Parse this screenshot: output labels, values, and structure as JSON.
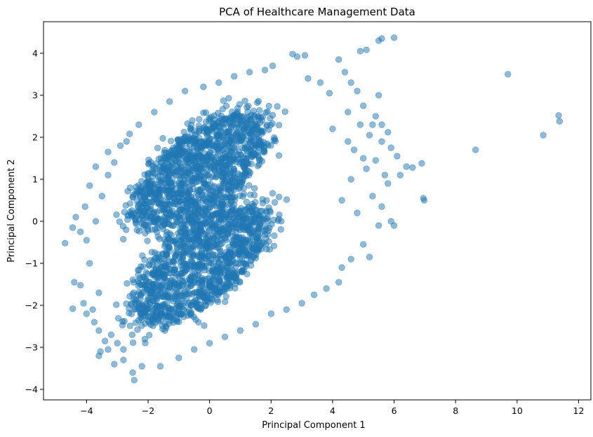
{
  "chart_data": {
    "type": "scatter",
    "title": "PCA of Healthcare Management Data",
    "xlabel": "Principal Component 1",
    "ylabel": "Principal Component 2",
    "xlim": [
      -5.4,
      12.4
    ],
    "ylim": [
      -4.25,
      4.75
    ],
    "xticks": [
      -4,
      -2,
      0,
      2,
      4,
      6,
      8,
      10,
      12
    ],
    "yticks": [
      -4,
      -3,
      -2,
      -1,
      0,
      1,
      2,
      3,
      4
    ],
    "grid": false,
    "marker_color": "#1f77b4",
    "marker_alpha": 0.5,
    "series": [
      {
        "points": [
          [
            -4.7,
            -0.52
          ],
          [
            -4.45,
            -0.15
          ],
          [
            -4.4,
            -1.45
          ],
          [
            -4.45,
            -2.08
          ],
          [
            -4.2,
            -1.52
          ],
          [
            -4.1,
            -1.95
          ],
          [
            -4.0,
            -2.2
          ],
          [
            -4.35,
            0.1
          ],
          [
            -4.2,
            -0.25
          ],
          [
            -4.0,
            -0.45
          ],
          [
            -4.05,
            0.35
          ],
          [
            -3.9,
            0.85
          ],
          [
            -3.75,
            -2.4
          ],
          [
            -3.6,
            -2.6
          ],
          [
            -3.55,
            -3.1
          ],
          [
            -3.6,
            -3.2
          ],
          [
            -3.3,
            -3.05
          ],
          [
            -3.1,
            -3.4
          ],
          [
            -2.8,
            -3.3
          ],
          [
            -2.5,
            -3.6
          ],
          [
            -2.45,
            -3.78
          ],
          [
            -2.2,
            -3.45
          ],
          [
            -1.6,
            -3.45
          ],
          [
            -2.9,
            1.8
          ],
          [
            -2.6,
            2.08
          ],
          [
            -2.3,
            2.3
          ],
          [
            -1.8,
            2.6
          ],
          [
            -1.3,
            2.85
          ],
          [
            -0.8,
            3.1
          ],
          [
            -0.2,
            3.2
          ],
          [
            0.3,
            3.3
          ],
          [
            0.8,
            3.45
          ],
          [
            1.3,
            3.55
          ],
          [
            1.8,
            3.6
          ],
          [
            2.05,
            3.7
          ],
          [
            2.7,
            3.98
          ],
          [
            2.85,
            3.92
          ],
          [
            3.1,
            3.95
          ],
          [
            3.2,
            3.4
          ],
          [
            3.6,
            3.3
          ],
          [
            3.9,
            3.05
          ],
          [
            4.2,
            3.85
          ],
          [
            4.4,
            3.55
          ],
          [
            4.6,
            3.3
          ],
          [
            4.9,
            4.05
          ],
          [
            5.1,
            4.08
          ],
          [
            5.5,
            4.3
          ],
          [
            5.6,
            4.35
          ],
          [
            6.0,
            4.37
          ],
          [
            4.8,
            3.1
          ],
          [
            5.0,
            2.75
          ],
          [
            5.4,
            2.5
          ],
          [
            5.5,
            3.0
          ],
          [
            5.6,
            2.3
          ],
          [
            5.8,
            2.12
          ],
          [
            5.2,
            2.05
          ],
          [
            5.6,
            1.9
          ],
          [
            5.9,
            1.75
          ],
          [
            6.1,
            1.55
          ],
          [
            6.4,
            1.3
          ],
          [
            6.6,
            1.28
          ],
          [
            6.9,
            1.38
          ],
          [
            6.2,
            1.1
          ],
          [
            5.8,
            0.9
          ],
          [
            5.3,
            0.6
          ],
          [
            5.6,
            0.35
          ],
          [
            5.9,
            0.0
          ],
          [
            6.0,
            -0.1
          ],
          [
            5.5,
            -0.1
          ],
          [
            5.0,
            -0.55
          ],
          [
            5.2,
            -0.85
          ],
          [
            4.6,
            -0.9
          ],
          [
            4.3,
            -1.1
          ],
          [
            4.2,
            -1.45
          ],
          [
            3.8,
            -1.6
          ],
          [
            3.4,
            -1.75
          ],
          [
            3.0,
            -1.95
          ],
          [
            2.5,
            -2.1
          ],
          [
            2.0,
            -2.2
          ],
          [
            1.5,
            -2.45
          ],
          [
            1.0,
            -2.6
          ],
          [
            0.5,
            -2.75
          ],
          [
            0.0,
            -2.9
          ],
          [
            -0.5,
            -3.05
          ],
          [
            -1.0,
            -3.25
          ],
          [
            6.95,
            0.55
          ],
          [
            6.98,
            0.5
          ],
          [
            8.65,
            1.7
          ],
          [
            9.7,
            3.5
          ],
          [
            10.85,
            2.05
          ],
          [
            11.35,
            2.52
          ],
          [
            11.38,
            2.38
          ],
          [
            4.5,
            2.6
          ],
          [
            4.9,
            2.3
          ],
          [
            5.3,
            2.3
          ],
          [
            4.0,
            2.2
          ],
          [
            4.5,
            1.9
          ],
          [
            4.3,
            0.5
          ],
          [
            4.6,
            1.0
          ],
          [
            4.8,
            0.2
          ],
          [
            5.1,
            1.25
          ],
          [
            5.4,
            1.45
          ],
          [
            5.7,
            1.1
          ],
          [
            4.7,
            1.7
          ],
          [
            5.0,
            1.5
          ],
          [
            -3.9,
            -1.0
          ],
          [
            -3.6,
            -1.7
          ],
          [
            -3.8,
            -2.1
          ],
          [
            -3.4,
            -2.85
          ],
          [
            -3.2,
            -2.7
          ],
          [
            -3.0,
            -2.9
          ],
          [
            -2.8,
            -3.05
          ],
          [
            -3.7,
            0.0
          ],
          [
            -3.5,
            0.6
          ],
          [
            -3.3,
            1.1
          ],
          [
            -3.1,
            1.4
          ],
          [
            -2.7,
            1.9
          ],
          [
            -3.7,
            1.3
          ],
          [
            -3.3,
            1.65
          ]
        ]
      }
    ],
    "clusters": [
      {
        "cx": -0.3,
        "cy": 1.2,
        "rx": 3.0,
        "ry": 1.2,
        "angle_deg": 28,
        "weight": 0.5
      },
      {
        "cx": -0.3,
        "cy": -1.0,
        "rx": 3.0,
        "ry": 1.2,
        "angle_deg": 28,
        "weight": 0.5
      }
    ]
  }
}
